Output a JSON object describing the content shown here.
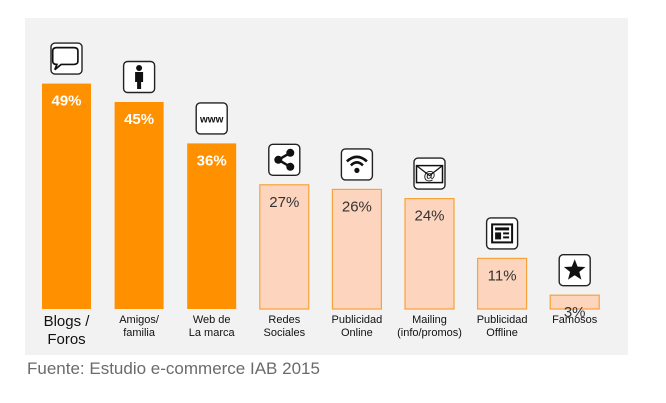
{
  "chart_data": {
    "type": "bar",
    "categories": [
      [
        "Blogs /",
        "Foros"
      ],
      [
        "Amigos/",
        "familia"
      ],
      [
        "Web de",
        "La marca"
      ],
      [
        "Redes",
        "Sociales"
      ],
      [
        "Publicidad",
        "Online"
      ],
      [
        "Mailing",
        "(info/promos)"
      ],
      [
        "Publicidad",
        "Offline"
      ],
      [
        "Famosos"
      ]
    ],
    "values": [
      49,
      45,
      36,
      27,
      26,
      24,
      11,
      3
    ],
    "value_labels": [
      "49%",
      "45%",
      "36%",
      "27%",
      "26%",
      "24%",
      "11%",
      "3%"
    ],
    "icons": [
      "speech-bubble-icon",
      "person-icon",
      "www-icon",
      "share-icon",
      "wifi-icon",
      "mail-icon",
      "newspaper-icon",
      "star-icon"
    ],
    "www_icon_text": "www",
    "mail_icon_text": "@",
    "highlight_count": 3,
    "highlight_color": "#ff9000",
    "highlight_label_color": "#ffffff",
    "muted_color": "#fdd5bf",
    "muted_border": "#f7a23a",
    "muted_label_color": "#333333",
    "grid": false,
    "legend": "none",
    "ylim": [
      0,
      55
    ]
  },
  "source_note": "Fuente: Estudio e-commerce IAB 2015"
}
